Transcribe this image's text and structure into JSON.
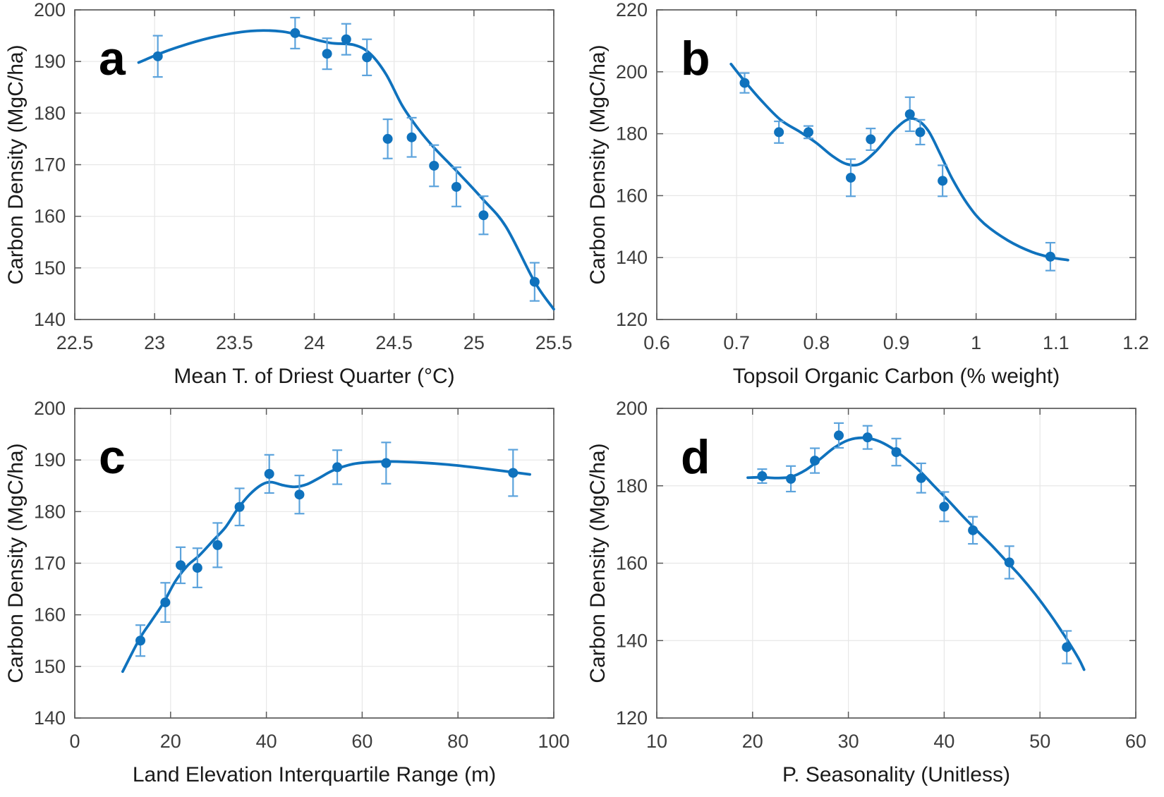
{
  "figure": {
    "type": "multi-panel-smoothed-line-chart",
    "background": "#ffffff",
    "shared_ylabel": "Carbon Density (MgC/ha)"
  },
  "colors": {
    "curve": "#0f72bd",
    "marker": "#0f72bd",
    "errorbar": "#5ca3dc",
    "grid": "#e7e7e7",
    "frame": "#5a5a5a",
    "tick_text": "#3d3d3d",
    "label_text": "#1a1a1a",
    "panel_letter": "#000000"
  },
  "chart_data": [
    {
      "id": "a",
      "type": "line",
      "panel_label": "a",
      "xlabel": "Mean T. of Driest Quarter (°C)",
      "ylabel": "Carbon Density (MgC/ha)",
      "xlim": [
        22.5,
        25.5
      ],
      "ylim": [
        140,
        200
      ],
      "xticks": [
        22.5,
        23,
        23.5,
        24,
        24.5,
        25,
        25.5
      ],
      "xtick_labels": [
        "22.5",
        "23",
        "23.5",
        "24",
        "24.5",
        "25",
        "25.5"
      ],
      "yticks": [
        140,
        150,
        160,
        170,
        180,
        190,
        200
      ],
      "ytick_labels": [
        "140",
        "150",
        "160",
        "170",
        "180",
        "190",
        "200"
      ],
      "grid": true,
      "points": [
        [
          23.02,
          191.0,
          4.0
        ],
        [
          23.88,
          195.5,
          3.0
        ],
        [
          24.08,
          191.5,
          3.0
        ],
        [
          24.2,
          194.3,
          3.0
        ],
        [
          24.33,
          190.8,
          3.5
        ],
        [
          24.46,
          175.0,
          3.8
        ],
        [
          24.61,
          175.3,
          3.8
        ],
        [
          24.75,
          169.8,
          4.0
        ],
        [
          24.89,
          165.7,
          3.8
        ],
        [
          25.06,
          160.2,
          3.7
        ],
        [
          25.38,
          147.3,
          3.7
        ]
      ],
      "curve": [
        [
          22.9,
          189.8
        ],
        [
          23.1,
          192.3
        ],
        [
          23.35,
          194.6
        ],
        [
          23.6,
          195.9
        ],
        [
          23.8,
          195.8
        ],
        [
          23.95,
          194.7
        ],
        [
          24.1,
          193.6
        ],
        [
          24.25,
          193.2
        ],
        [
          24.35,
          191.5
        ],
        [
          24.45,
          187.5
        ],
        [
          24.55,
          181.5
        ],
        [
          24.65,
          177.0
        ],
        [
          24.75,
          173.3
        ],
        [
          24.9,
          168.5
        ],
        [
          25.05,
          163.5
        ],
        [
          25.2,
          158.0
        ],
        [
          25.38,
          147.3
        ],
        [
          25.5,
          142.0
        ]
      ]
    },
    {
      "id": "b",
      "type": "line",
      "panel_label": "b",
      "xlabel": "Topsoil Organic Carbon (% weight)",
      "ylabel": "Carbon Density (MgC/ha)",
      "xlim": [
        0.6,
        1.2
      ],
      "ylim": [
        120,
        220
      ],
      "xticks": [
        0.6,
        0.7,
        0.8,
        0.9,
        1.0,
        1.1,
        1.2
      ],
      "xtick_labels": [
        "0.6",
        "0.7",
        "0.8",
        "0.9",
        "1",
        "1.1",
        "1.2"
      ],
      "yticks": [
        120,
        140,
        160,
        180,
        200,
        220
      ],
      "ytick_labels": [
        "120",
        "140",
        "160",
        "180",
        "200",
        "220"
      ],
      "grid": true,
      "points": [
        [
          0.71,
          196.4,
          3.2
        ],
        [
          0.753,
          180.5,
          3.5
        ],
        [
          0.79,
          180.5,
          2.0
        ],
        [
          0.843,
          165.8,
          6.0
        ],
        [
          0.868,
          178.2,
          3.5
        ],
        [
          0.917,
          186.3,
          5.5
        ],
        [
          0.93,
          180.5,
          4.0
        ],
        [
          0.958,
          164.8,
          5.0
        ],
        [
          1.093,
          140.3,
          4.5
        ]
      ],
      "curve": [
        [
          0.693,
          202.5
        ],
        [
          0.71,
          197.0
        ],
        [
          0.73,
          191.0
        ],
        [
          0.755,
          184.5
        ],
        [
          0.78,
          180.5
        ],
        [
          0.8,
          177.0
        ],
        [
          0.82,
          172.8
        ],
        [
          0.838,
          170.2
        ],
        [
          0.855,
          170.3
        ],
        [
          0.875,
          174.5
        ],
        [
          0.895,
          180.5
        ],
        [
          0.912,
          184.3
        ],
        [
          0.925,
          184.6
        ],
        [
          0.94,
          181.0
        ],
        [
          0.955,
          173.5
        ],
        [
          0.97,
          165.5
        ],
        [
          0.99,
          157.0
        ],
        [
          1.01,
          151.0
        ],
        [
          1.04,
          145.5
        ],
        [
          1.07,
          141.8
        ],
        [
          1.095,
          140.0
        ],
        [
          1.115,
          139.2
        ]
      ]
    },
    {
      "id": "c",
      "type": "line",
      "panel_label": "c",
      "xlabel": "Land Elevation Interquartile Range (m)",
      "ylabel": "Carbon Density (MgC/ha)",
      "xlim": [
        0,
        100
      ],
      "ylim": [
        140,
        200
      ],
      "xticks": [
        0,
        20,
        40,
        60,
        80,
        100
      ],
      "xtick_labels": [
        "0",
        "20",
        "40",
        "60",
        "80",
        "100"
      ],
      "yticks": [
        140,
        150,
        160,
        170,
        180,
        190,
        200
      ],
      "ytick_labels": [
        "140",
        "150",
        "160",
        "170",
        "180",
        "190",
        "200"
      ],
      "grid": true,
      "points": [
        [
          13.7,
          155.0,
          3.0
        ],
        [
          18.9,
          162.4,
          3.8
        ],
        [
          22.1,
          169.6,
          3.5
        ],
        [
          25.6,
          169.1,
          3.8
        ],
        [
          29.8,
          173.5,
          4.3
        ],
        [
          34.4,
          180.9,
          3.6
        ],
        [
          40.6,
          187.3,
          3.7
        ],
        [
          46.9,
          183.3,
          3.7
        ],
        [
          54.8,
          188.6,
          3.3
        ],
        [
          65.0,
          189.4,
          4.0
        ],
        [
          91.5,
          187.5,
          4.5
        ]
      ],
      "curve": [
        [
          10.0,
          149.0
        ],
        [
          13.5,
          155.3
        ],
        [
          16.0,
          158.8
        ],
        [
          18.5,
          162.3
        ],
        [
          21.0,
          166.5
        ],
        [
          23.5,
          169.5
        ],
        [
          26.0,
          171.5
        ],
        [
          29.0,
          174.5
        ],
        [
          31.5,
          177.0
        ],
        [
          34.0,
          180.5
        ],
        [
          36.5,
          183.3
        ],
        [
          39.0,
          185.2
        ],
        [
          41.0,
          185.7
        ],
        [
          43.5,
          185.1
        ],
        [
          46.0,
          184.8
        ],
        [
          48.5,
          185.3
        ],
        [
          51.0,
          186.5
        ],
        [
          54.0,
          188.0
        ],
        [
          58.0,
          189.2
        ],
        [
          62.0,
          189.6
        ],
        [
          66.0,
          189.7
        ],
        [
          72.0,
          189.5
        ],
        [
          78.0,
          189.1
        ],
        [
          84.0,
          188.5
        ],
        [
          90.0,
          187.8
        ],
        [
          95.0,
          187.2
        ]
      ]
    },
    {
      "id": "d",
      "type": "line",
      "panel_label": "d",
      "xlabel": "P. Seasonality (Unitless)",
      "ylabel": "Carbon Density (MgC/ha)",
      "xlim": [
        10,
        60
      ],
      "ylim": [
        120,
        200
      ],
      "xticks": [
        10,
        20,
        30,
        40,
        50,
        60
      ],
      "xtick_labels": [
        "10",
        "20",
        "30",
        "40",
        "50",
        "60"
      ],
      "yticks": [
        120,
        140,
        160,
        180,
        200
      ],
      "ytick_labels": [
        "120",
        "140",
        "160",
        "180",
        "200"
      ],
      "grid": true,
      "points": [
        [
          21.0,
          182.5,
          1.8
        ],
        [
          24.0,
          181.8,
          3.3
        ],
        [
          26.5,
          186.5,
          3.2
        ],
        [
          29.0,
          193.0,
          3.2
        ],
        [
          32.0,
          192.5,
          3.0
        ],
        [
          35.0,
          188.7,
          3.5
        ],
        [
          37.6,
          182.0,
          3.8
        ],
        [
          40.0,
          174.6,
          3.8
        ],
        [
          43.0,
          168.5,
          3.5
        ],
        [
          46.8,
          160.2,
          4.2
        ],
        [
          52.8,
          138.3,
          4.2
        ]
      ],
      "curve": [
        [
          19.5,
          182.1
        ],
        [
          21.0,
          182.2
        ],
        [
          22.5,
          182.0
        ],
        [
          24.0,
          182.3
        ],
        [
          25.5,
          184.0
        ],
        [
          27.0,
          186.8
        ],
        [
          28.5,
          189.8
        ],
        [
          30.0,
          191.8
        ],
        [
          31.5,
          192.4
        ],
        [
          33.0,
          191.7
        ],
        [
          34.5,
          189.8
        ],
        [
          36.0,
          187.0
        ],
        [
          37.5,
          183.7
        ],
        [
          39.0,
          179.8
        ],
        [
          40.5,
          176.0
        ],
        [
          42.0,
          172.0
        ],
        [
          43.5,
          168.2
        ],
        [
          45.0,
          164.5
        ],
        [
          46.5,
          160.5
        ],
        [
          48.0,
          156.5
        ],
        [
          49.5,
          152.0
        ],
        [
          51.0,
          147.0
        ],
        [
          52.5,
          141.5
        ],
        [
          54.0,
          135.5
        ],
        [
          54.6,
          132.5
        ]
      ]
    }
  ]
}
